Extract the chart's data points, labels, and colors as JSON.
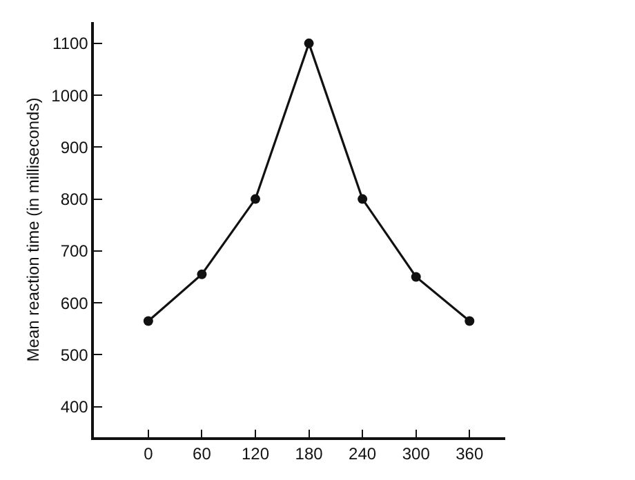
{
  "chart_data": {
    "type": "line",
    "ylabel": "Mean reaction time (in milliseconds)",
    "x": [
      0,
      60,
      120,
      180,
      240,
      300,
      360
    ],
    "series": [
      {
        "color": "#111111",
        "values": [
          565,
          655,
          800,
          1100,
          800,
          650,
          565
        ]
      }
    ],
    "xlim": [
      -61,
      400
    ],
    "xticks": [
      0,
      60,
      120,
      180,
      240,
      300,
      360
    ],
    "ylim": [
      341,
      1141
    ],
    "yticks": [
      400,
      500,
      600,
      700,
      800,
      900,
      1000,
      1100
    ],
    "marker": "circle",
    "line_style": "solid"
  }
}
